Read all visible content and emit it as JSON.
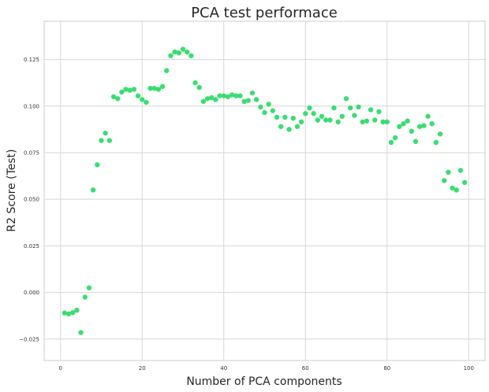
{
  "chart_data": {
    "type": "scatter",
    "title": "PCA test performace",
    "xlabel": "Number of PCA components",
    "ylabel": "R2 Score (Test)",
    "xlim": [
      -4,
      104
    ],
    "ylim": [
      -0.0365,
      0.1455
    ],
    "xticks": [
      0,
      20,
      40,
      60,
      80,
      100
    ],
    "yticks": [
      -0.025,
      0,
      0.025,
      0.05,
      0.075,
      0.1,
      0.125
    ],
    "xtick_labels": [
      "0",
      "20",
      "40",
      "60",
      "80",
      "100"
    ],
    "ytick_labels": [
      "−0.025",
      "0.000",
      "0.025",
      "0.050",
      "0.075",
      "0.100",
      "0.125"
    ],
    "grid": true,
    "point_color": "#3ddc73",
    "x": [
      1,
      2,
      3,
      4,
      5,
      6,
      7,
      8,
      9,
      10,
      11,
      12,
      13,
      14,
      15,
      16,
      17,
      18,
      19,
      20,
      21,
      22,
      23,
      24,
      25,
      26,
      27,
      28,
      29,
      30,
      31,
      32,
      33,
      34,
      35,
      36,
      37,
      38,
      39,
      40,
      41,
      42,
      43,
      44,
      45,
      46,
      47,
      48,
      49,
      50,
      51,
      52,
      53,
      54,
      55,
      56,
      57,
      58,
      59,
      60,
      61,
      62,
      63,
      64,
      65,
      66,
      67,
      68,
      69,
      70,
      71,
      72,
      73,
      74,
      75,
      76,
      77,
      78,
      79,
      80,
      81,
      82,
      83,
      84,
      85,
      86,
      87,
      88,
      89,
      90,
      91,
      92,
      93,
      94,
      95,
      96,
      97,
      98,
      99
    ],
    "y": [
      -0.011,
      -0.0115,
      -0.0108,
      -0.0095,
      -0.0215,
      -0.0025,
      0.0025,
      0.055,
      0.0685,
      0.0815,
      0.0855,
      0.0815,
      0.105,
      0.104,
      0.1075,
      0.109,
      0.1085,
      0.109,
      0.1055,
      0.1035,
      0.102,
      0.1095,
      0.1095,
      0.109,
      0.1105,
      0.119,
      0.127,
      0.129,
      0.1285,
      0.1305,
      0.129,
      0.127,
      0.1125,
      0.11,
      0.1025,
      0.104,
      0.1045,
      0.1035,
      0.1055,
      0.1055,
      0.105,
      0.106,
      0.1055,
      0.1055,
      0.1025,
      0.103,
      0.107,
      0.1035,
      0.0995,
      0.0965,
      0.101,
      0.0975,
      0.094,
      0.089,
      0.094,
      0.0875,
      0.0935,
      0.089,
      0.0915,
      0.096,
      0.099,
      0.096,
      0.0925,
      0.0945,
      0.0925,
      0.0925,
      0.099,
      0.0915,
      0.0945,
      0.104,
      0.099,
      0.095,
      0.0995,
      0.0915,
      0.092,
      0.098,
      0.0925,
      0.097,
      0.0915,
      0.0915,
      0.0805,
      0.083,
      0.089,
      0.0905,
      0.092,
      0.0865,
      0.081,
      0.089,
      0.0895,
      0.0945,
      0.0905,
      0.0805,
      0.085,
      0.06,
      0.0645,
      0.056,
      0.055,
      0.0655,
      0.059
    ]
  }
}
